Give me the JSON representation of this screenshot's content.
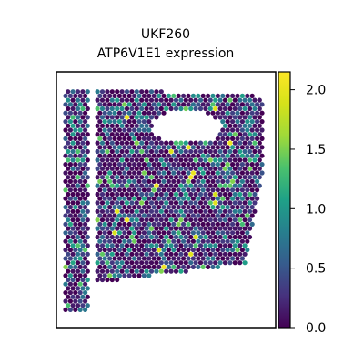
{
  "chart_data": {
    "type": "scatter",
    "title": "UKF260\nATP6V1E1 expression",
    "title_lines": [
      "UKF260",
      "ATP6V1E1 expression"
    ],
    "xlabel": "",
    "ylabel": "",
    "legend": "none",
    "grid": false,
    "colormap": "viridis",
    "colorbar": {
      "min": 0.0,
      "max": 2.15,
      "ticks": [
        0.0,
        0.5,
        1.0,
        1.5,
        2.0
      ],
      "tick_labels": [
        "0.0",
        "0.5",
        "1.0",
        "1.5",
        "2.0"
      ]
    },
    "spots_description": "spatial transcriptomics spots colored by expression; mostly low (0.0–0.5) with scattered values up to ~2.1",
    "value_mix": [
      {
        "value": 0.05,
        "share": 0.55
      },
      {
        "value": 0.35,
        "share": 0.2
      },
      {
        "value": 0.7,
        "share": 0.12
      },
      {
        "value": 1.0,
        "share": 0.08
      },
      {
        "value": 1.4,
        "share": 0.04
      },
      {
        "value": 2.0,
        "share": 0.01
      }
    ]
  }
}
